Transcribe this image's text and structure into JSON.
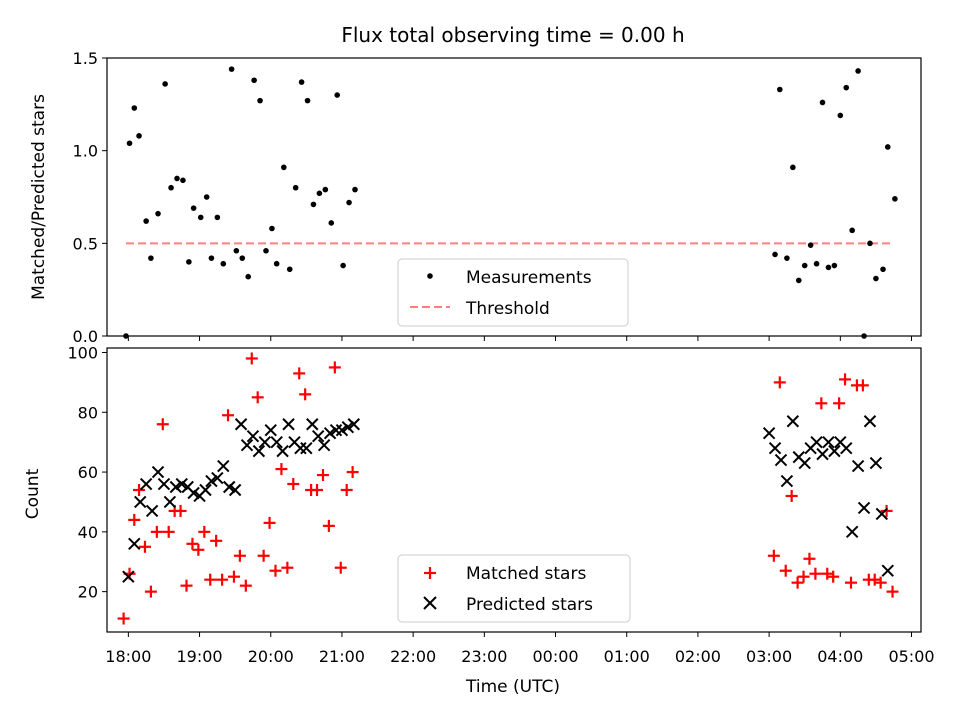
{
  "chart_data": [
    {
      "type": "scatter",
      "title": "Flux total observing time = 0.00 h",
      "xlabel": "",
      "ylabel": "Matched/Predicted stars",
      "xlim": [
        "17:42",
        "05:08"
      ],
      "ylim": [
        0,
        1.5
      ],
      "yticks": [
        "0.0",
        "0.5",
        "1.0",
        "1.5"
      ],
      "grid": false,
      "legend_position": "lower-center",
      "legend": [
        "Measurements",
        "Threshold"
      ],
      "threshold": {
        "name": "Threshold",
        "value": 0.5,
        "x_start": "17:58",
        "x_end": "04:42",
        "color": "#ff7f7f"
      },
      "series": [
        {
          "name": "Measurements",
          "color": "#000000",
          "points": [
            [
              "17:58",
              0.0
            ],
            [
              "18:01",
              1.04
            ],
            [
              "18:05",
              1.23
            ],
            [
              "18:09",
              1.08
            ],
            [
              "18:15",
              0.62
            ],
            [
              "18:19",
              0.42
            ],
            [
              "18:25",
              0.66
            ],
            [
              "18:31",
              1.36
            ],
            [
              "18:36",
              0.8
            ],
            [
              "18:41",
              0.85
            ],
            [
              "18:46",
              0.84
            ],
            [
              "18:51",
              0.4
            ],
            [
              "18:55",
              0.69
            ],
            [
              "19:01",
              0.64
            ],
            [
              "19:06",
              0.75
            ],
            [
              "19:10",
              0.42
            ],
            [
              "19:15",
              0.64
            ],
            [
              "19:20",
              0.39
            ],
            [
              "19:27",
              1.44
            ],
            [
              "19:31",
              0.46
            ],
            [
              "19:36",
              0.42
            ],
            [
              "19:41",
              0.32
            ],
            [
              "19:46",
              1.38
            ],
            [
              "19:51",
              1.27
            ],
            [
              "19:56",
              0.46
            ],
            [
              "20:01",
              0.58
            ],
            [
              "20:05",
              0.39
            ],
            [
              "20:11",
              0.91
            ],
            [
              "20:16",
              0.36
            ],
            [
              "20:21",
              0.8
            ],
            [
              "20:26",
              1.37
            ],
            [
              "20:31",
              1.27
            ],
            [
              "20:36",
              0.71
            ],
            [
              "20:41",
              0.77
            ],
            [
              "20:46",
              0.79
            ],
            [
              "20:51",
              0.61
            ],
            [
              "20:56",
              1.3
            ],
            [
              "21:01",
              0.38
            ],
            [
              "21:06",
              0.72
            ],
            [
              "21:11",
              0.79
            ],
            [
              "03:05",
              0.44
            ],
            [
              "03:09",
              1.33
            ],
            [
              "03:15",
              0.42
            ],
            [
              "03:20",
              0.91
            ],
            [
              "03:25",
              0.3
            ],
            [
              "03:30",
              0.38
            ],
            [
              "03:35",
              0.49
            ],
            [
              "03:40",
              0.39
            ],
            [
              "03:45",
              1.26
            ],
            [
              "03:50",
              0.37
            ],
            [
              "03:55",
              0.38
            ],
            [
              "04:00",
              1.19
            ],
            [
              "04:05",
              1.34
            ],
            [
              "04:10",
              0.57
            ],
            [
              "04:15",
              1.43
            ],
            [
              "04:20",
              0.0
            ],
            [
              "04:25",
              0.5
            ],
            [
              "04:30",
              0.31
            ],
            [
              "04:36",
              0.36
            ],
            [
              "04:40",
              1.02
            ],
            [
              "04:46",
              0.74
            ]
          ]
        }
      ]
    },
    {
      "type": "scatter",
      "title": "",
      "xlabel": "Time (UTC)",
      "ylabel": "Count",
      "xlim": [
        "17:42",
        "05:08"
      ],
      "ylim": [
        6.5,
        101.5
      ],
      "xticks": [
        "18:00",
        "19:00",
        "20:00",
        "21:00",
        "22:00",
        "23:00",
        "00:00",
        "01:00",
        "02:00",
        "03:00",
        "04:00",
        "05:00"
      ],
      "yticks": [
        "20",
        "40",
        "60",
        "80",
        "100"
      ],
      "grid": false,
      "legend_position": "lower-center",
      "legend": [
        "Matched stars",
        "Predicted stars"
      ],
      "series": [
        {
          "name": "Matched stars",
          "marker": "+",
          "color": "#ff0000",
          "points": [
            [
              "17:56",
              11
            ],
            [
              "18:01",
              26
            ],
            [
              "18:05",
              44
            ],
            [
              "18:09",
              54
            ],
            [
              "18:14",
              35
            ],
            [
              "18:19",
              20
            ],
            [
              "18:24",
              40
            ],
            [
              "18:29",
              76
            ],
            [
              "18:34",
              40
            ],
            [
              "18:39",
              47
            ],
            [
              "18:44",
              47
            ],
            [
              "18:49",
              22
            ],
            [
              "18:54",
              36
            ],
            [
              "18:59",
              34
            ],
            [
              "19:04",
              40
            ],
            [
              "19:09",
              24
            ],
            [
              "19:14",
              37
            ],
            [
              "19:19",
              24
            ],
            [
              "19:24",
              79
            ],
            [
              "19:29",
              25
            ],
            [
              "19:34",
              32
            ],
            [
              "19:39",
              22
            ],
            [
              "19:44",
              98
            ],
            [
              "19:49",
              85
            ],
            [
              "19:54",
              32
            ],
            [
              "19:59",
              43
            ],
            [
              "20:04",
              27
            ],
            [
              "20:09",
              61
            ],
            [
              "20:14",
              28
            ],
            [
              "20:19",
              56
            ],
            [
              "20:24",
              93
            ],
            [
              "20:29",
              86
            ],
            [
              "20:34",
              54
            ],
            [
              "20:39",
              54
            ],
            [
              "20:44",
              59
            ],
            [
              "20:49",
              42
            ],
            [
              "20:54",
              95
            ],
            [
              "20:59",
              28
            ],
            [
              "21:04",
              54
            ],
            [
              "21:09",
              60
            ],
            [
              "03:04",
              32
            ],
            [
              "03:09",
              90
            ],
            [
              "03:14",
              27
            ],
            [
              "03:19",
              52
            ],
            [
              "03:24",
              23
            ],
            [
              "03:29",
              25
            ],
            [
              "03:34",
              31
            ],
            [
              "03:39",
              26
            ],
            [
              "03:44",
              83
            ],
            [
              "03:49",
              26
            ],
            [
              "03:54",
              25
            ],
            [
              "03:59",
              83
            ],
            [
              "04:04",
              91
            ],
            [
              "04:09",
              23
            ],
            [
              "04:14",
              89
            ],
            [
              "04:19",
              89
            ],
            [
              "04:24",
              24
            ],
            [
              "04:29",
              24
            ],
            [
              "04:34",
              23
            ],
            [
              "04:39",
              47
            ],
            [
              "04:44",
              20
            ]
          ]
        },
        {
          "name": "Predicted stars",
          "marker": "x",
          "color": "#000000",
          "points": [
            [
              "18:00",
              25
            ],
            [
              "18:05",
              36
            ],
            [
              "18:10",
              50
            ],
            [
              "18:15",
              56
            ],
            [
              "18:20",
              47
            ],
            [
              "18:25",
              60
            ],
            [
              "18:30",
              56
            ],
            [
              "18:35",
              50
            ],
            [
              "18:40",
              55
            ],
            [
              "18:45",
              56
            ],
            [
              "18:50",
              55
            ],
            [
              "18:55",
              53
            ],
            [
              "19:00",
              52
            ],
            [
              "19:05",
              54
            ],
            [
              "19:10",
              57
            ],
            [
              "19:15",
              58
            ],
            [
              "19:20",
              62
            ],
            [
              "19:25",
              55
            ],
            [
              "19:30",
              54
            ],
            [
              "19:35",
              76
            ],
            [
              "19:40",
              69
            ],
            [
              "19:45",
              72
            ],
            [
              "19:50",
              67
            ],
            [
              "19:55",
              70
            ],
            [
              "20:00",
              74
            ],
            [
              "20:05",
              70
            ],
            [
              "20:10",
              67
            ],
            [
              "20:15",
              76
            ],
            [
              "20:20",
              70
            ],
            [
              "20:25",
              68
            ],
            [
              "20:30",
              68
            ],
            [
              "20:35",
              76
            ],
            [
              "20:40",
              72
            ],
            [
              "20:45",
              69
            ],
            [
              "20:50",
              73
            ],
            [
              "20:55",
              74
            ],
            [
              "21:00",
              74
            ],
            [
              "21:05",
              75
            ],
            [
              "21:10",
              76
            ],
            [
              "03:00",
              73
            ],
            [
              "03:05",
              68
            ],
            [
              "03:10",
              64
            ],
            [
              "03:15",
              57
            ],
            [
              "03:20",
              77
            ],
            [
              "03:25",
              65
            ],
            [
              "03:30",
              63
            ],
            [
              "03:35",
              68
            ],
            [
              "03:40",
              70
            ],
            [
              "03:45",
              66
            ],
            [
              "03:50",
              70
            ],
            [
              "03:55",
              67
            ],
            [
              "04:00",
              70
            ],
            [
              "04:05",
              68
            ],
            [
              "04:10",
              40
            ],
            [
              "04:15",
              62
            ],
            [
              "04:20",
              48
            ],
            [
              "04:25",
              77
            ],
            [
              "04:30",
              63
            ],
            [
              "04:35",
              46
            ],
            [
              "04:40",
              27
            ]
          ]
        }
      ]
    }
  ]
}
